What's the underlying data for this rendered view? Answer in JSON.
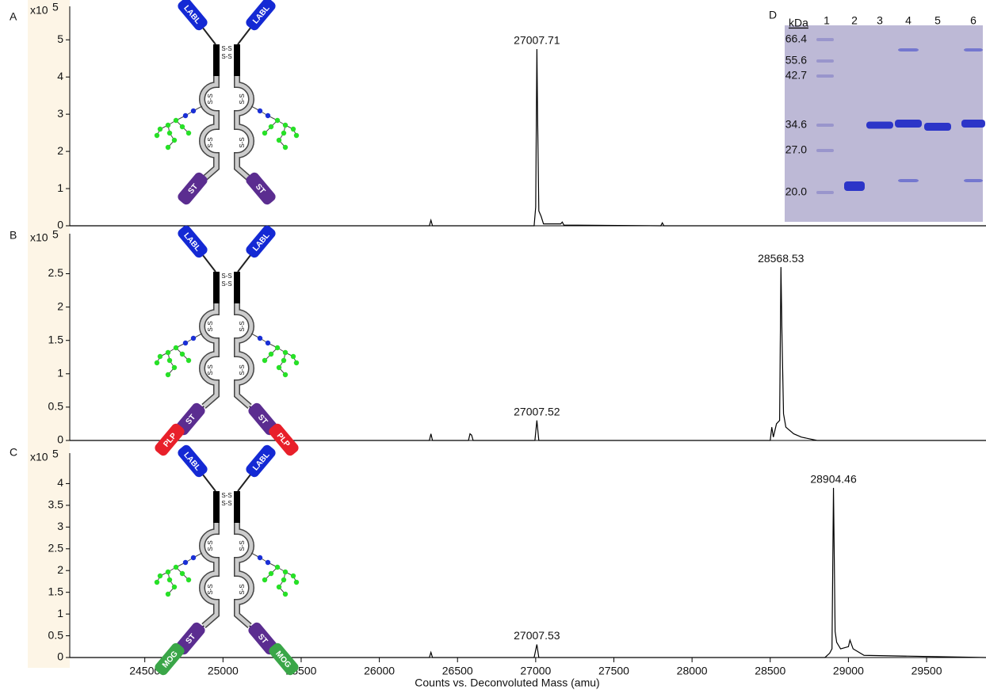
{
  "chart_data": [
    {
      "type": "line",
      "panel": "A",
      "multiplier": "x10",
      "multiplier_exp": "5",
      "color": "#000000",
      "xlim": [
        24020,
        29880
      ],
      "ylim": [
        0,
        5.9
      ],
      "yticks": [
        0,
        1,
        2,
        3,
        4,
        5
      ],
      "x": [
        24020,
        26320,
        26330,
        26340,
        26990,
        27000,
        27007.71,
        27012,
        27020,
        27035,
        27050,
        27160,
        27170,
        27180,
        27800,
        27810,
        27820,
        29880
      ],
      "values": [
        0,
        0,
        0.15,
        0,
        0,
        0.5,
        4.75,
        3.0,
        0.4,
        0.25,
        0.05,
        0.05,
        0.1,
        0.02,
        0,
        0.08,
        0,
        0
      ],
      "annotations": [
        {
          "text": "27007.71",
          "x": 27007.71,
          "y": 4.75
        }
      ],
      "construct": {
        "top_tag": "LABL",
        "mid_tag": "ST",
        "bond": "S-S"
      }
    },
    {
      "type": "line",
      "panel": "B",
      "multiplier": "x10",
      "multiplier_exp": "5",
      "color": "#000000",
      "xlim": [
        24020,
        29880
      ],
      "ylim": [
        0,
        3.1
      ],
      "yticks": [
        0,
        0.5,
        1,
        1.5,
        2,
        2.5
      ],
      "x": [
        24020,
        26320,
        26330,
        26340,
        26570,
        26580,
        26590,
        26600,
        26995,
        27007.52,
        27020,
        28500,
        28510,
        28520,
        28540,
        28560,
        28568.53,
        28575,
        28585,
        28600,
        28650,
        28700,
        28800,
        29880
      ],
      "values": [
        0,
        0,
        0.1,
        0,
        0,
        0.1,
        0.08,
        0,
        0,
        0.3,
        0,
        0,
        0.2,
        0.05,
        0.25,
        0.3,
        2.6,
        1.6,
        0.4,
        0.2,
        0.1,
        0.05,
        0,
        0
      ],
      "annotations": [
        {
          "text": "28568.53",
          "x": 28568.53,
          "y": 2.6
        },
        {
          "text": "27007.52",
          "x": 27007.52,
          "y": 0.3
        }
      ],
      "construct": {
        "top_tag": "LABL",
        "mid_tag": "ST",
        "end_tag": "PLP",
        "end_color": "#e8202a",
        "bond": "S-S"
      }
    },
    {
      "type": "line",
      "panel": "C",
      "multiplier": "x10",
      "multiplier_exp": "5",
      "color": "#000000",
      "xlim": [
        24020,
        29880
      ],
      "ylim": [
        0,
        4.7
      ],
      "yticks": [
        0,
        0.5,
        1,
        1.5,
        2,
        2.5,
        3,
        3.5,
        4
      ],
      "xticks": [
        24500,
        25000,
        25500,
        26000,
        26500,
        27000,
        27500,
        28000,
        28500,
        29000,
        29500
      ],
      "xlabel": "Counts vs. Deconvoluted Mass (amu)",
      "x": [
        24020,
        26320,
        26330,
        26340,
        26990,
        27007.53,
        27020,
        28850,
        28880,
        28895,
        28904.46,
        28915,
        28925,
        28950,
        29000,
        29010,
        29030,
        29100,
        29880
      ],
      "values": [
        0,
        0,
        0.12,
        0,
        0,
        0.3,
        0,
        0,
        0.1,
        0.2,
        3.9,
        0.6,
        0.35,
        0.2,
        0.25,
        0.4,
        0.2,
        0.05,
        0
      ],
      "annotations": [
        {
          "text": "28904.46",
          "x": 28904.46,
          "y": 3.9
        },
        {
          "text": "27007.53",
          "x": 27007.53,
          "y": 0.3
        }
      ],
      "construct": {
        "top_tag": "LABL",
        "mid_tag": "ST",
        "end_tag": "MOG",
        "end_color": "#3aa648",
        "bond": "S-S"
      }
    }
  ],
  "gel": {
    "panel": "D",
    "unit": "kDa",
    "lanes": [
      "1",
      "2",
      "3",
      "4",
      "5",
      "6"
    ],
    "markers": [
      "66.4",
      "55.6",
      "42.7",
      "34.6",
      "27.0",
      "20.0"
    ]
  }
}
